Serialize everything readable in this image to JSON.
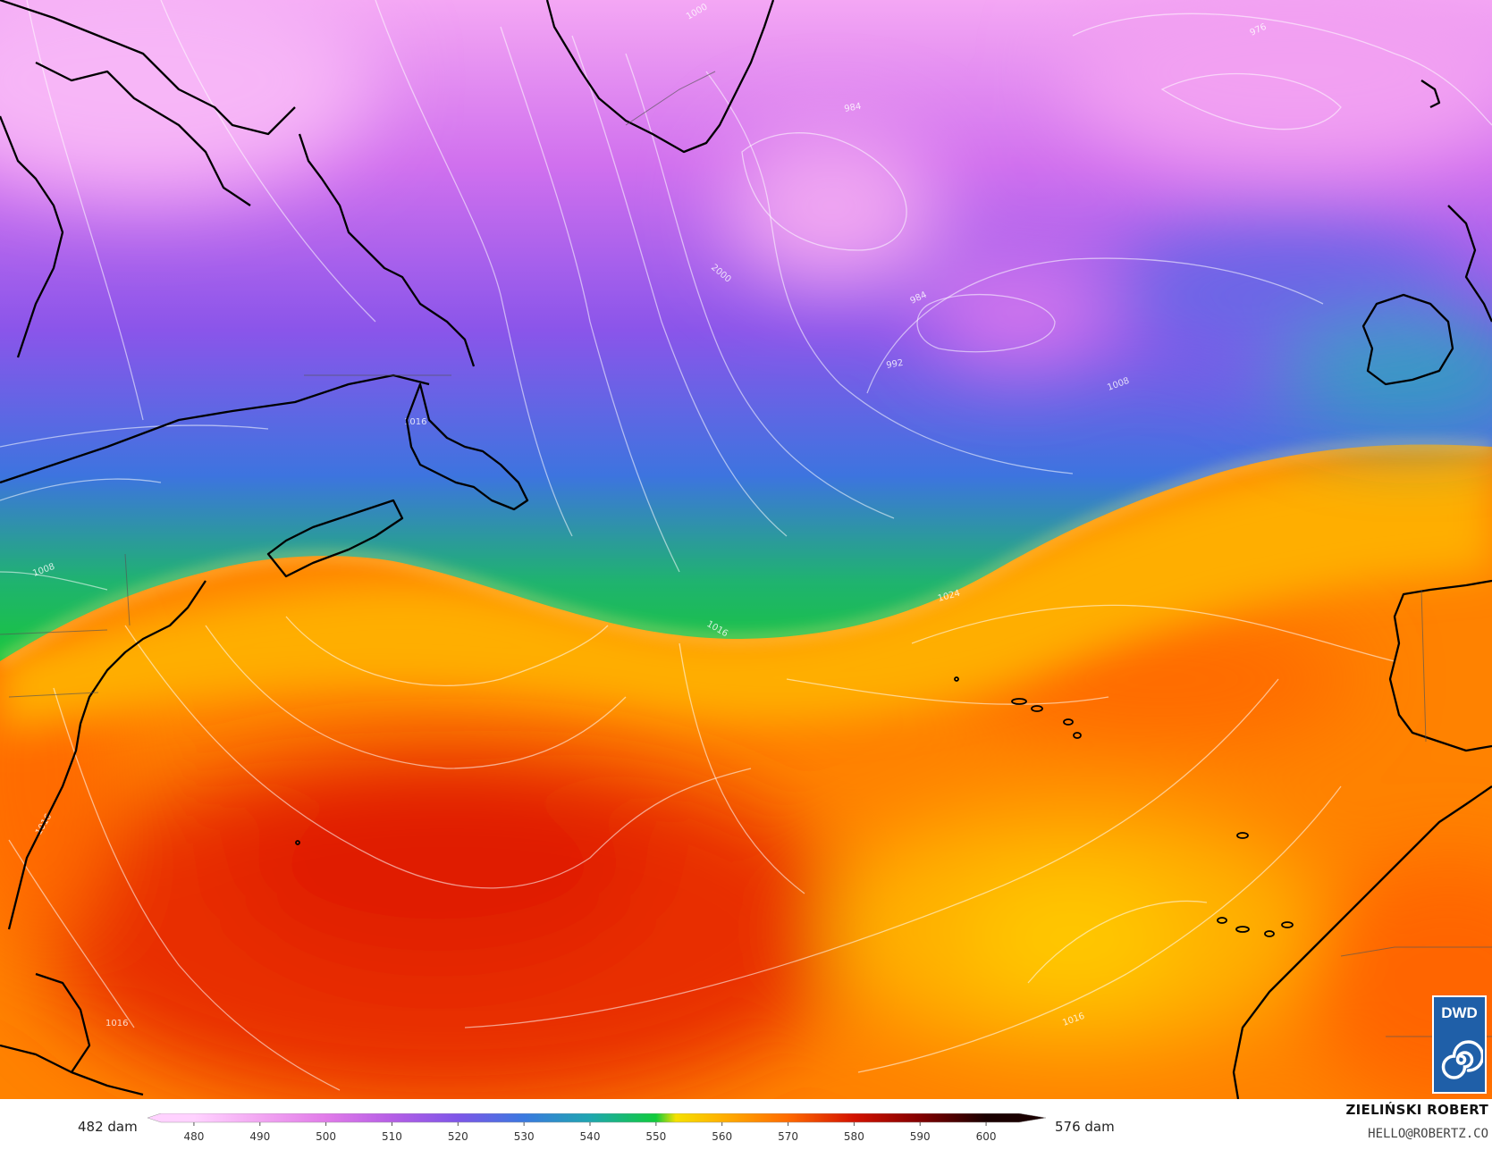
{
  "map": {
    "field": "500 hPa geopotential height (shaded) with mean sea level pressure isobars",
    "isobar_labels": [
      {
        "text": "1000"
      },
      {
        "text": "976"
      },
      {
        "text": "984"
      },
      {
        "text": "2000"
      },
      {
        "text": "984"
      },
      {
        "text": "992"
      },
      {
        "text": "1008"
      },
      {
        "text": "1016"
      },
      {
        "text": "1008"
      },
      {
        "text": "1024"
      },
      {
        "text": "1016"
      },
      {
        "text": "1016"
      },
      {
        "text": "1016"
      },
      {
        "text": "1016"
      }
    ],
    "features": [
      "Greenland",
      "Labrador",
      "Newfoundland",
      "Nova Scotia",
      "US East Coast",
      "Ireland",
      "Iberia",
      "Morocco",
      "Azores",
      "Canary Islands",
      "Bahamas"
    ],
    "colors": {
      "low": "#f4b9f2",
      "purple": "#7f4fe6",
      "blue": "#2f6fd9",
      "green": "#19c43c",
      "yellow": "#ffc000",
      "orange": "#ff8000",
      "red": "#e32200"
    }
  },
  "colorbar": {
    "min_label": "482 dam",
    "max_label": "576 dam",
    "ticks": [
      "480",
      "490",
      "500",
      "510",
      "520",
      "530",
      "540",
      "550",
      "560",
      "570",
      "580",
      "590",
      "600"
    ],
    "stops": [
      {
        "v": 480,
        "c": "#ffd2ff"
      },
      {
        "v": 490,
        "c": "#f2a6f2"
      },
      {
        "v": 500,
        "c": "#e17be9"
      },
      {
        "v": 510,
        "c": "#b55ee6"
      },
      {
        "v": 520,
        "c": "#7e56e8"
      },
      {
        "v": 530,
        "c": "#3a79e0"
      },
      {
        "v": 540,
        "c": "#1fa6b0"
      },
      {
        "v": 550,
        "c": "#10cc3c"
      },
      {
        "v": 553,
        "c": "#f5e000"
      },
      {
        "v": 560,
        "c": "#ffb000"
      },
      {
        "v": 570,
        "c": "#ff6a00"
      },
      {
        "v": 580,
        "c": "#d31200"
      },
      {
        "v": 590,
        "c": "#820000"
      },
      {
        "v": 600,
        "c": "#1a0000"
      }
    ]
  },
  "credit": {
    "name": "ZIELIŃSKI ROBERT",
    "email": "HELLO@ROBERTZ.CO"
  },
  "logo": {
    "text": "DWD",
    "icon": "dwd-swirl-icon"
  }
}
